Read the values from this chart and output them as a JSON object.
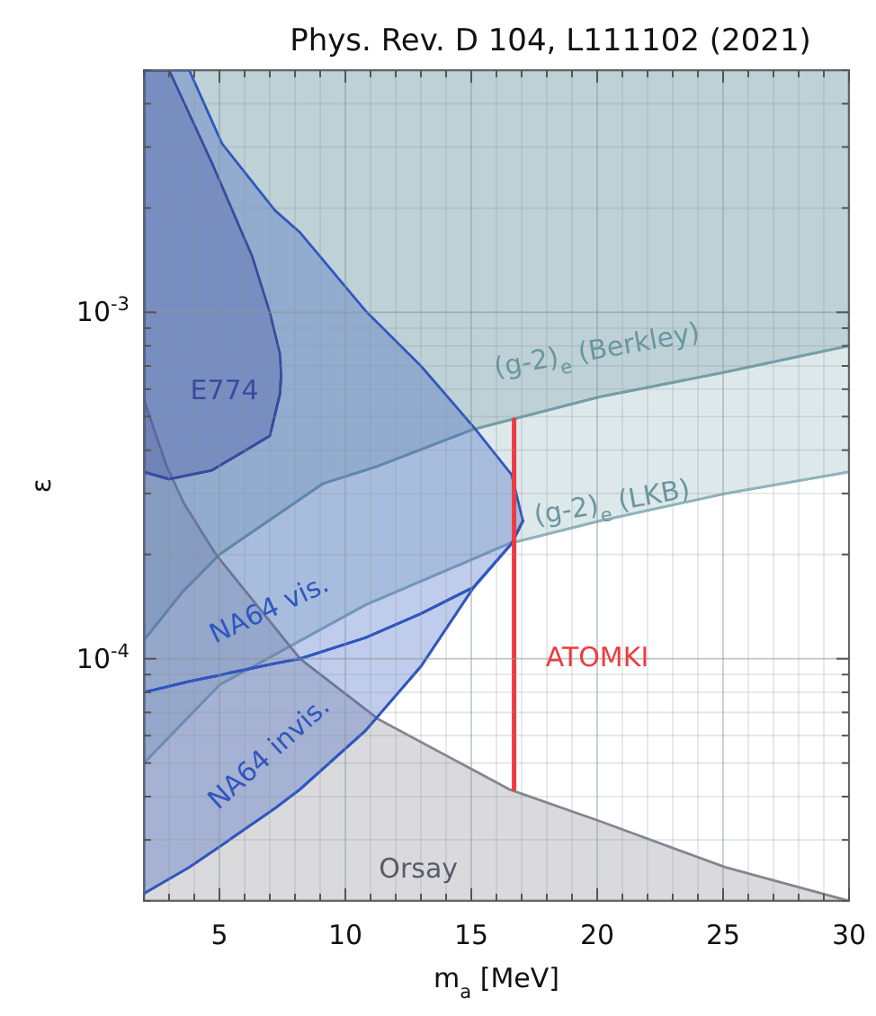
{
  "chart_data": {
    "type": "area",
    "title": "Phys. Rev. D 104, L111102 (2021)",
    "xlabel": "m$_{a}$ [MeV]",
    "ylabel": "ε",
    "log": "y",
    "grid": true,
    "xlim": [
      2,
      30
    ],
    "ylim": [
      2e-05,
      0.005
    ],
    "xticks": [
      {
        "value": 2,
        "label": null
      },
      {
        "value": 3,
        "label": null
      },
      {
        "value": 4,
        "label": null
      },
      5,
      {
        "value": 6,
        "label": null
      },
      {
        "value": 7,
        "label": null
      },
      {
        "value": 8,
        "label": null
      },
      {
        "value": 9,
        "label": null
      },
      10,
      {
        "value": 11,
        "label": null
      },
      {
        "value": 12,
        "label": null
      },
      {
        "value": 13,
        "label": null
      },
      {
        "value": 14,
        "label": null
      },
      15,
      {
        "value": 16,
        "label": null
      },
      {
        "value": 17,
        "label": null
      },
      {
        "value": 18,
        "label": null
      },
      {
        "value": 19,
        "label": null
      },
      20,
      {
        "value": 21,
        "label": null
      },
      {
        "value": 22,
        "label": null
      },
      {
        "value": 23,
        "label": null
      },
      {
        "value": 24,
        "label": null
      },
      25,
      {
        "value": 26,
        "label": null
      },
      {
        "value": 27,
        "label": null
      },
      {
        "value": 28,
        "label": null
      },
      {
        "value": 29,
        "label": null
      },
      30
    ],
    "yticks": [
      {
        "value": 2e-05,
        "label": null
      },
      {
        "value": 3e-05,
        "label": null
      },
      {
        "value": 4e-05,
        "label": null
      },
      {
        "value": 5e-05,
        "label": null
      },
      {
        "value": 6e-05,
        "label": null
      },
      {
        "value": 7e-05,
        "label": null
      },
      {
        "value": 8e-05,
        "label": null
      },
      {
        "value": 9e-05,
        "label": null
      },
      {
        "value": 0.0001,
        "label": "10$^{-4}$"
      },
      {
        "value": 0.0002,
        "label": null
      },
      {
        "value": 0.0003,
        "label": null
      },
      {
        "value": 0.0004,
        "label": null
      },
      {
        "value": 0.0005,
        "label": null
      },
      {
        "value": 0.0006,
        "label": null
      },
      {
        "value": 0.0007,
        "label": null
      },
      {
        "value": 0.0008,
        "label": null
      },
      {
        "value": 0.0009,
        "label": null
      },
      {
        "value": 0.001,
        "label": "10$^{-3}$"
      },
      {
        "value": 0.002,
        "label": null
      },
      {
        "value": 0.003,
        "label": null
      },
      {
        "value": 0.004,
        "label": null
      },
      {
        "value": 0.005,
        "label": null
      }
    ],
    "series": [
      {
        "name": "(g-2)$_{e}$ (Berkley)",
        "type": "line",
        "color": "#6a969f",
        "x": [
          2,
          3.5,
          5,
          9.1,
          11.3,
          15.1,
          20.1,
          25,
          30
        ],
        "values": [
          0.000113,
          0.000155,
          0.0002,
          0.00032,
          0.00036,
          0.00046,
          0.00057,
          0.00067,
          0.0008
        ],
        "lower": [
          0.000113,
          0.000155,
          0.0002,
          0.00032,
          0.00036,
          0.00046,
          0.00057,
          0.00067,
          0.0008
        ],
        "upper": [
          0.005,
          0.005,
          0.005,
          0.005,
          0.005,
          0.005,
          0.005,
          0.005,
          0.005
        ]
      },
      {
        "name": "(g-2)$_{e}$ (LKB)",
        "type": "line",
        "color": "#8fb4bb",
        "x": [
          2,
          5,
          10.8,
          16.5,
          20.1,
          25.1,
          30
        ],
        "values": [
          5e-05,
          8.4e-05,
          0.000143,
          0.000215,
          0.00025,
          0.0003,
          0.000346
        ],
        "lower": [
          5e-05,
          8.4e-05,
          0.000143,
          0.000215,
          0.00025,
          0.0003,
          0.000346
        ],
        "upper": [
          0.005,
          0.005,
          0.005,
          0.005,
          0.005,
          0.005,
          0.005
        ]
      },
      {
        "name": "Orsay",
        "color": "#85858f",
        "x": [
          2,
          2.9,
          3.6,
          4.86,
          8.2,
          11.3,
          16.5,
          20.1,
          25.1,
          30
        ],
        "values": [
          0.00056,
          0.00036,
          0.00028,
          0.0002,
          0.0001,
          6.7e-05,
          4.2e-05,
          3.4e-05,
          2.5e-05,
          2e-05
        ]
      },
      {
        "name": "NA64 invis.",
        "type": "line",
        "color": "#2f57c0",
        "x": [
          2,
          3.8,
          5.1,
          7.2,
          8.2,
          10.8,
          13,
          15.1,
          16.6,
          17.05
        ],
        "values": [
          2.1e-05,
          2.5e-05,
          2.9e-05,
          3.7e-05,
          4.2e-05,
          6.2e-05,
          9.5e-05,
          0.000161,
          0.000215,
          0.00025
        ],
        "lower": [
          2.1e-05,
          2.5e-05,
          2.9e-05,
          3.7e-05,
          4.2e-05,
          6.2e-05,
          9.5e-05,
          0.000161,
          0.000215,
          0.00025
        ],
        "upper": [
          8e-05,
          8.6e-05,
          9e-05,
          9.7e-05,
          0.0001,
          0.000115,
          0.000135,
          0.000161,
          0.000215,
          0.00025
        ]
      },
      {
        "name": "NA64 vis.",
        "type": "line",
        "color": "#2f57c0",
        "x": [
          2,
          3.8,
          5.1,
          7.2,
          8.2,
          10.8,
          13,
          15.1,
          16.6,
          17.05
        ],
        "values": [
          8e-05,
          8.6e-05,
          9e-05,
          9.7e-05,
          0.0001,
          0.000115,
          0.000135,
          0.000161,
          0.000215,
          0.00025
        ],
        "lower": [
          8e-05,
          8.6e-05,
          9e-05,
          9.7e-05,
          0.0001,
          0.000115,
          0.000135,
          0.000161,
          0.000215,
          0.00025
        ],
        "upper": [
          0.005,
          0.005,
          0.00307,
          0.00197,
          0.0017,
          0.00101,
          0.0007,
          0.000466,
          0.00034,
          0.00025
        ]
      },
      {
        "name": "E774",
        "type": "line",
        "color": "#3b4a9e",
        "x": [
          2,
          3,
          4.7,
          6.3,
          7,
          7.4,
          7.45
        ],
        "values": [
          0.000346,
          0.00033,
          0.00035,
          0.00041,
          0.00044,
          0.00058,
          0.00066
        ],
        "lower": [
          0.000346,
          0.00033,
          0.00035,
          0.00041,
          0.00044,
          0.00058,
          0.00066
        ],
        "upper": [
          0.005,
          0.005,
          0.0027,
          0.00145,
          0.001,
          0.00076,
          0.00066
        ]
      },
      {
        "name": "ATOMKI",
        "type": "line",
        "color": "#ee3b3f",
        "x": [
          16.7,
          16.7
        ],
        "values": [
          4.2e-05,
          0.00049
        ]
      }
    ]
  }
}
